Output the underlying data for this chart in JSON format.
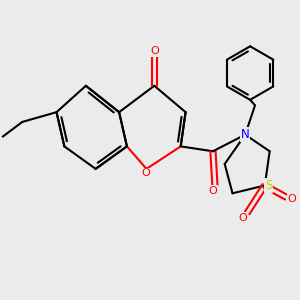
{
  "bg_color": "#ebebeb",
  "bond_color": "#000000",
  "oxygen_color": "#ff0000",
  "nitrogen_color": "#0000ff",
  "sulfur_color": "#cccc00",
  "lw": 1.5,
  "L": 1.0,
  "xlim": [
    -3.8,
    4.2
  ],
  "ylim": [
    -3.5,
    3.2
  ]
}
